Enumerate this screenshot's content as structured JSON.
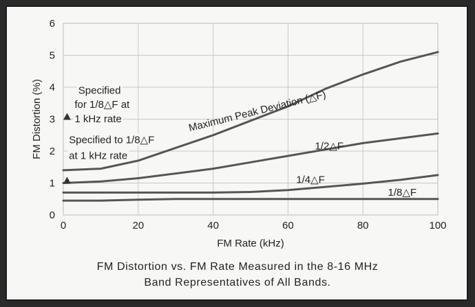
{
  "chart_data": {
    "type": "line",
    "xlabel": "FM Rate (kHz)",
    "ylabel": "FM Distortion (%)",
    "xlim": [
      0,
      100
    ],
    "ylim": [
      0,
      6
    ],
    "xticks": [
      "0",
      "20",
      "40",
      "60",
      "80",
      "100"
    ],
    "yticks": [
      "0",
      "1",
      "2",
      "3",
      "4",
      "5",
      "6"
    ],
    "grid": true,
    "series": [
      {
        "name": "Maximum Peak Deviation (△F)",
        "x": [
          0,
          10,
          20,
          30,
          40,
          50,
          60,
          70,
          80,
          90,
          100
        ],
        "y": [
          1.4,
          1.45,
          1.7,
          2.1,
          2.5,
          2.95,
          3.4,
          3.95,
          4.4,
          4.8,
          5.1
        ]
      },
      {
        "name": "1/2△F",
        "x": [
          0,
          10,
          20,
          30,
          40,
          50,
          60,
          70,
          80,
          90,
          100
        ],
        "y": [
          1.0,
          1.05,
          1.15,
          1.3,
          1.45,
          1.65,
          1.85,
          2.05,
          2.25,
          2.4,
          2.55
        ]
      },
      {
        "name": "1/4△F",
        "x": [
          0,
          10,
          20,
          30,
          40,
          50,
          60,
          70,
          80,
          90,
          100
        ],
        "y": [
          0.7,
          0.7,
          0.7,
          0.7,
          0.7,
          0.72,
          0.78,
          0.88,
          0.98,
          1.1,
          1.25
        ]
      },
      {
        "name": "1/8△F",
        "x": [
          0,
          10,
          20,
          30,
          40,
          50,
          60,
          70,
          80,
          90,
          100
        ],
        "y": [
          0.45,
          0.45,
          0.48,
          0.5,
          0.5,
          0.5,
          0.5,
          0.5,
          0.5,
          0.5,
          0.5
        ]
      }
    ],
    "markers": [
      {
        "x": 1,
        "y": 3.0,
        "shape": "triangle"
      },
      {
        "x": 1,
        "y": 1.0,
        "shape": "triangle"
      }
    ],
    "annotations": [
      {
        "text": "Specified",
        "x": 4,
        "y": 3.8
      },
      {
        "text": "for 1/8△F at",
        "x": 3,
        "y": 3.35
      },
      {
        "text": "1 kHz rate",
        "x": 3,
        "y": 2.9
      },
      {
        "text": "Specified to 1/8△F",
        "x": 1.5,
        "y": 2.25
      },
      {
        "text": "at 1 kHz rate",
        "x": 1.5,
        "y": 1.75
      }
    ],
    "label_positions": [
      {
        "x": 52,
        "y": 3.15,
        "angle": -14
      },
      {
        "x": 71,
        "y": 2.05,
        "angle": 0
      },
      {
        "x": 66,
        "y": 1.0,
        "angle": 0
      },
      {
        "x": 90.5,
        "y": 0.6,
        "angle": 0
      }
    ],
    "colors": {
      "line": "#555555",
      "text": "#222222",
      "background": "#f7f7f5",
      "frame": "#1c1c1c"
    }
  },
  "caption": {
    "line1": "FM Distortion vs. FM Rate  Measured in the 8-16 MHz",
    "line2": "Band Representatives of All Bands."
  }
}
